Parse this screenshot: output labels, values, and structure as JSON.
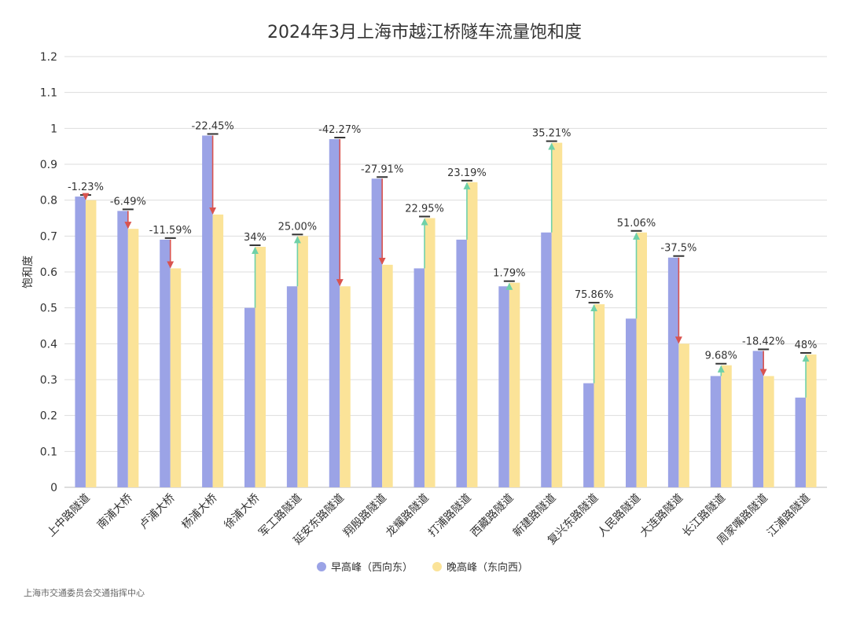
{
  "chart_data": {
    "type": "bar",
    "title": "2024年3月上海市越江桥隧车流量饱和度",
    "xlabel": "",
    "ylabel": "饱和度",
    "ylim": [
      0,
      1.2
    ],
    "yticks": [
      0,
      0.1,
      0.2,
      0.3,
      0.4,
      0.5,
      0.6,
      0.7,
      0.8,
      0.9,
      1,
      1.1,
      1.2
    ],
    "grid": true,
    "legend_position": "bottom-center",
    "categories": [
      "上中路隧道",
      "南浦大桥",
      "卢浦大桥",
      "杨浦大桥",
      "徐浦大桥",
      "军工路隧道",
      "延安东路隧道",
      "翔殷路隧道",
      "龙耀路隧道",
      "打浦路隧道",
      "西藏路隧道",
      "新建路隧道",
      "复兴东路隧道",
      "人民路隧道",
      "大连路隧道",
      "长江路隧道",
      "周家嘴路隧道",
      "江浦路隧道"
    ],
    "series": [
      {
        "name": "早高峰（西向东）",
        "color": "#9ba3e6",
        "values": [
          0.81,
          0.77,
          0.69,
          0.98,
          0.5,
          0.56,
          0.97,
          0.86,
          0.61,
          0.69,
          0.56,
          0.71,
          0.29,
          0.47,
          0.64,
          0.31,
          0.38,
          0.25
        ]
      },
      {
        "name": "晚高峰（东向西）",
        "color": "#fbe398",
        "values": [
          0.8,
          0.72,
          0.61,
          0.76,
          0.67,
          0.7,
          0.56,
          0.62,
          0.75,
          0.85,
          0.57,
          0.96,
          0.51,
          0.71,
          0.4,
          0.34,
          0.31,
          0.37
        ]
      }
    ],
    "changes": [
      "-1.23%",
      "-6.49%",
      "-11.59%",
      "-22.45%",
      "34%",
      "25.00%",
      "-42.27%",
      "-27.91%",
      "22.95%",
      "23.19%",
      "1.79%",
      "35.21%",
      "75.86%",
      "51.06%",
      "-37.5%",
      "9.68%",
      "-18.42%",
      "48%"
    ],
    "increase_arrow_color": "#6fd1a8",
    "decrease_arrow_color": "#d9534f",
    "source": "上海市交通委员会交通指挥中心"
  }
}
